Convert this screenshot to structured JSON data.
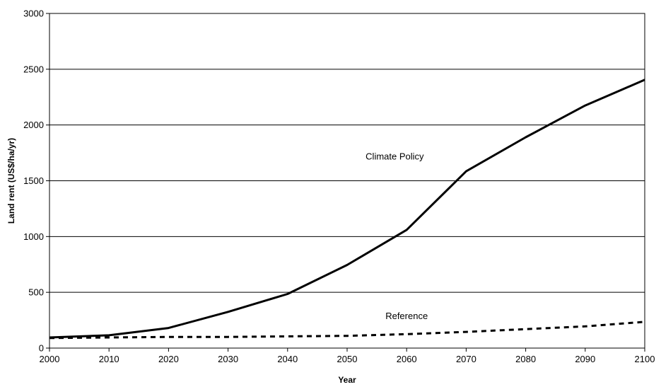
{
  "chart_data": {
    "type": "line",
    "xlabel": "Year",
    "ylabel": "Land rent (US$/ha/yr)",
    "xlim": [
      2000,
      2100
    ],
    "ylim": [
      0,
      3000
    ],
    "x_ticks": [
      2000,
      2010,
      2020,
      2030,
      2040,
      2050,
      2060,
      2070,
      2080,
      2090,
      2100
    ],
    "y_ticks": [
      0,
      500,
      1000,
      1500,
      2000,
      2500,
      3000
    ],
    "grid": "horizontal",
    "x": [
      2000,
      2010,
      2020,
      2030,
      2040,
      2050,
      2060,
      2070,
      2080,
      2090,
      2100
    ],
    "series": [
      {
        "name": "Climate Policy",
        "style": "solid",
        "color": "#000000",
        "values": [
          95,
          115,
          180,
          325,
          485,
          745,
          1060,
          1585,
          1890,
          2175,
          2405
        ]
      },
      {
        "name": "Reference",
        "style": "dashed",
        "color": "#000000",
        "values": [
          90,
          95,
          100,
          100,
          105,
          110,
          125,
          145,
          170,
          195,
          235
        ]
      }
    ],
    "annotations": [
      {
        "text": "Climate Policy",
        "x": 2058,
        "y": 1690
      },
      {
        "text": "Reference",
        "x": 2060,
        "y": 260
      }
    ]
  }
}
